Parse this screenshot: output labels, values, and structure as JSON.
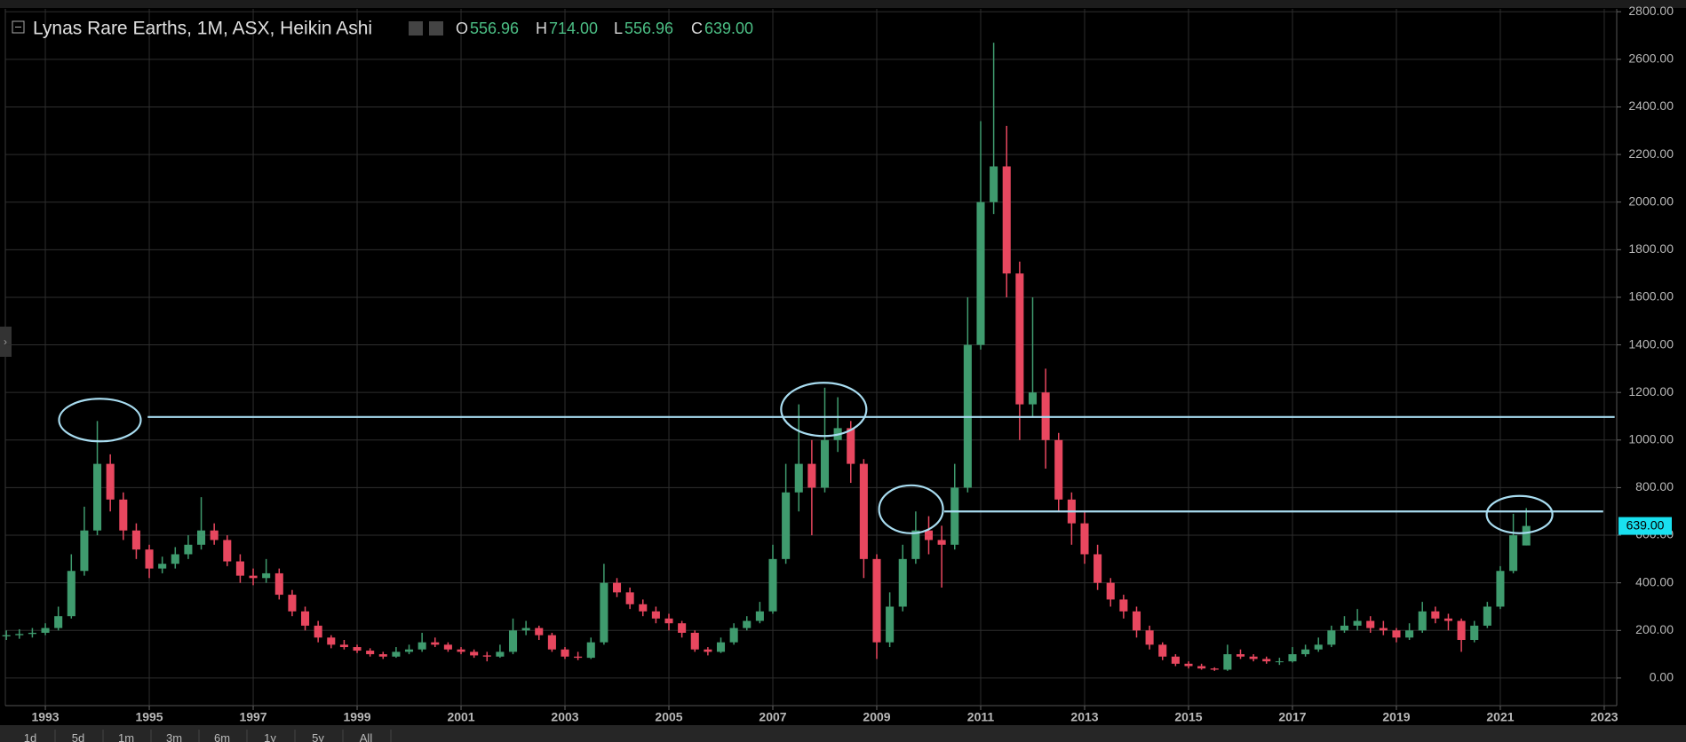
{
  "chart_data": {
    "type": "candlestick",
    "title": "Lynas Rare Earths, 1M, ASX, Heikin Ashi",
    "readout": {
      "keys": [
        "O",
        "H",
        "L",
        "C"
      ],
      "values": [
        556.96,
        714,
        556.96,
        639
      ],
      "value_labels": [
        "556.96",
        "714.00",
        "556.96",
        "639.00"
      ]
    },
    "up_color": "#3f9b6e",
    "down_color": "#e8475f",
    "grid": true,
    "x": [
      1992.25,
      1992.5,
      1992.75,
      1993,
      1993.25,
      1993.5,
      1993.75,
      1994,
      1994.25,
      1994.5,
      1994.75,
      1995,
      1995.25,
      1995.5,
      1995.75,
      1996,
      1996.25,
      1996.5,
      1996.75,
      1997,
      1997.25,
      1997.5,
      1997.75,
      1998,
      1998.25,
      1998.5,
      1998.75,
      1999,
      1999.25,
      1999.5,
      1999.75,
      2000,
      2000.25,
      2000.5,
      2000.75,
      2001,
      2001.25,
      2001.5,
      2001.75,
      2002,
      2002.25,
      2002.5,
      2002.75,
      2003,
      2003.25,
      2003.5,
      2003.75,
      2004,
      2004.25,
      2004.5,
      2004.75,
      2005,
      2005.25,
      2005.5,
      2005.75,
      2006,
      2006.25,
      2006.5,
      2006.75,
      2007,
      2007.25,
      2007.5,
      2007.75,
      2008,
      2008.25,
      2008.5,
      2008.75,
      2009,
      2009.25,
      2009.5,
      2009.75,
      2010,
      2010.25,
      2010.5,
      2010.75,
      2011,
      2011.25,
      2011.5,
      2011.75,
      2012,
      2012.25,
      2012.5,
      2012.75,
      2013,
      2013.25,
      2013.5,
      2013.75,
      2014,
      2014.25,
      2014.5,
      2014.75,
      2015,
      2015.25,
      2015.5,
      2015.75,
      2016,
      2016.25,
      2016.5,
      2016.75,
      2017,
      2017.25,
      2017.5,
      2017.75,
      2018,
      2018.25,
      2018.5,
      2018.75,
      2019,
      2019.25,
      2019.5,
      2019.75,
      2020,
      2020.25,
      2020.5,
      2020.75,
      2021,
      2021.25,
      2021.5
    ],
    "ohlc": [
      [
        175,
        200,
        160,
        180
      ],
      [
        180,
        205,
        165,
        185
      ],
      [
        185,
        210,
        170,
        190
      ],
      [
        190,
        230,
        180,
        210
      ],
      [
        210,
        300,
        200,
        260
      ],
      [
        260,
        520,
        250,
        450
      ],
      [
        450,
        720,
        430,
        620
      ],
      [
        620,
        1080,
        600,
        900
      ],
      [
        900,
        940,
        700,
        750
      ],
      [
        750,
        780,
        580,
        620
      ],
      [
        620,
        650,
        500,
        540
      ],
      [
        540,
        560,
        420,
        460
      ],
      [
        460,
        510,
        440,
        480
      ],
      [
        480,
        550,
        460,
        520
      ],
      [
        520,
        600,
        500,
        560
      ],
      [
        560,
        760,
        540,
        620
      ],
      [
        620,
        650,
        560,
        580
      ],
      [
        580,
        600,
        470,
        490
      ],
      [
        490,
        520,
        400,
        430
      ],
      [
        430,
        460,
        390,
        420
      ],
      [
        420,
        500,
        400,
        440
      ],
      [
        440,
        460,
        330,
        350
      ],
      [
        350,
        370,
        260,
        280
      ],
      [
        280,
        300,
        200,
        220
      ],
      [
        220,
        240,
        150,
        170
      ],
      [
        170,
        180,
        125,
        140
      ],
      [
        140,
        160,
        120,
        130
      ],
      [
        130,
        140,
        105,
        115
      ],
      [
        115,
        125,
        90,
        100
      ],
      [
        100,
        110,
        80,
        90
      ],
      [
        90,
        130,
        85,
        110
      ],
      [
        110,
        140,
        100,
        120
      ],
      [
        120,
        190,
        110,
        150
      ],
      [
        150,
        170,
        130,
        140
      ],
      [
        140,
        150,
        110,
        120
      ],
      [
        120,
        130,
        100,
        110
      ],
      [
        110,
        120,
        85,
        95
      ],
      [
        95,
        110,
        70,
        90
      ],
      [
        90,
        140,
        85,
        110
      ],
      [
        110,
        250,
        100,
        200
      ],
      [
        200,
        240,
        180,
        210
      ],
      [
        210,
        220,
        160,
        180
      ],
      [
        180,
        190,
        110,
        120
      ],
      [
        120,
        130,
        80,
        90
      ],
      [
        90,
        110,
        75,
        85
      ],
      [
        85,
        170,
        80,
        150
      ],
      [
        150,
        480,
        140,
        400
      ],
      [
        400,
        420,
        340,
        360
      ],
      [
        360,
        380,
        290,
        310
      ],
      [
        310,
        330,
        260,
        280
      ],
      [
        280,
        300,
        230,
        250
      ],
      [
        250,
        270,
        200,
        230
      ],
      [
        230,
        240,
        170,
        190
      ],
      [
        190,
        200,
        110,
        120
      ],
      [
        120,
        130,
        95,
        110
      ],
      [
        110,
        170,
        105,
        150
      ],
      [
        150,
        230,
        140,
        210
      ],
      [
        210,
        260,
        200,
        240
      ],
      [
        240,
        320,
        230,
        280
      ],
      [
        280,
        560,
        270,
        500
      ],
      [
        500,
        900,
        480,
        780
      ],
      [
        780,
        1150,
        700,
        900
      ],
      [
        900,
        1000,
        600,
        800
      ],
      [
        800,
        1220,
        780,
        1000
      ],
      [
        1000,
        1180,
        950,
        1050
      ],
      [
        1050,
        1080,
        820,
        900
      ],
      [
        900,
        920,
        420,
        500
      ],
      [
        500,
        520,
        80,
        150
      ],
      [
        150,
        360,
        130,
        300
      ],
      [
        300,
        560,
        280,
        500
      ],
      [
        500,
        700,
        480,
        620
      ],
      [
        620,
        680,
        520,
        580
      ],
      [
        580,
        640,
        380,
        560
      ],
      [
        560,
        900,
        540,
        800
      ],
      [
        800,
        1600,
        780,
        1400
      ],
      [
        1400,
        2340,
        1380,
        2000
      ],
      [
        2000,
        2670,
        1950,
        2150
      ],
      [
        2150,
        2320,
        1600,
        1700
      ],
      [
        1700,
        1750,
        1000,
        1150
      ],
      [
        1150,
        1600,
        1100,
        1200
      ],
      [
        1200,
        1300,
        880,
        1000
      ],
      [
        1000,
        1030,
        700,
        750
      ],
      [
        750,
        780,
        560,
        650
      ],
      [
        650,
        700,
        480,
        520
      ],
      [
        520,
        560,
        370,
        400
      ],
      [
        400,
        420,
        300,
        330
      ],
      [
        330,
        350,
        250,
        280
      ],
      [
        280,
        300,
        170,
        200
      ],
      [
        200,
        220,
        120,
        140
      ],
      [
        140,
        150,
        75,
        90
      ],
      [
        90,
        100,
        50,
        60
      ],
      [
        60,
        70,
        40,
        50
      ],
      [
        50,
        60,
        35,
        40
      ],
      [
        40,
        45,
        30,
        35
      ],
      [
        35,
        140,
        30,
        100
      ],
      [
        100,
        120,
        80,
        90
      ],
      [
        90,
        100,
        70,
        80
      ],
      [
        80,
        90,
        60,
        70
      ],
      [
        70,
        85,
        55,
        70
      ],
      [
        70,
        130,
        65,
        100
      ],
      [
        100,
        140,
        90,
        120
      ],
      [
        120,
        170,
        110,
        140
      ],
      [
        140,
        220,
        130,
        200
      ],
      [
        200,
        260,
        190,
        220
      ],
      [
        220,
        290,
        200,
        240
      ],
      [
        240,
        260,
        190,
        210
      ],
      [
        210,
        240,
        180,
        200
      ],
      [
        200,
        210,
        150,
        170
      ],
      [
        170,
        230,
        160,
        200
      ],
      [
        200,
        320,
        190,
        280
      ],
      [
        280,
        300,
        230,
        250
      ],
      [
        250,
        270,
        200,
        240
      ],
      [
        240,
        250,
        110,
        160
      ],
      [
        160,
        240,
        150,
        220
      ],
      [
        220,
        320,
        210,
        300
      ],
      [
        300,
        470,
        290,
        450
      ],
      [
        450,
        690,
        440,
        600
      ],
      [
        556.96,
        714,
        556.96,
        639
      ]
    ],
    "xlim": [
      1992.23,
      2023.24
    ],
    "xticks": [
      1993,
      1995,
      1997,
      1999,
      2001,
      2003,
      2005,
      2007,
      2009,
      2011,
      2013,
      2015,
      2017,
      2019,
      2021,
      2023
    ],
    "ylim": [
      -116,
      2812
    ],
    "yticks": [
      {
        "value": 0,
        "label": "0.00"
      },
      {
        "value": 200,
        "label": "200.00"
      },
      {
        "value": 400,
        "label": "400.00"
      },
      {
        "value": 600,
        "label": "600.00"
      },
      {
        "value": 800,
        "label": "800.00"
      },
      {
        "value": 1000,
        "label": "1000.00"
      },
      {
        "value": 1200,
        "label": "1200.00"
      },
      {
        "value": 1400,
        "label": "1400.00"
      },
      {
        "value": 1600,
        "label": "1600.00"
      },
      {
        "value": 1800,
        "label": "1800.00"
      },
      {
        "value": 2000,
        "label": "2000.00"
      },
      {
        "value": 2200,
        "label": "2200.00"
      },
      {
        "value": 2400,
        "label": "2400.00"
      },
      {
        "value": 2600,
        "label": "2600.00"
      },
      {
        "value": 2800,
        "label": "2800.00"
      }
    ],
    "levels": [
      {
        "y": 1097,
        "x": [
          1994.97,
          2023.2
        ]
      },
      {
        "y": 700,
        "x": [
          2010.3,
          2022.98
        ]
      }
    ],
    "highlights": [
      {
        "x": 1994.05,
        "y": 1084
      },
      {
        "x": 2007.98,
        "y": 1129
      },
      {
        "x": 2009.66,
        "y": 709
      },
      {
        "x": 2021.37,
        "y": 687
      }
    ]
  },
  "toolbar": {
    "ranges": [
      "1d",
      "5d",
      "1m",
      "3m",
      "6m",
      "1y",
      "5y",
      "All"
    ]
  }
}
